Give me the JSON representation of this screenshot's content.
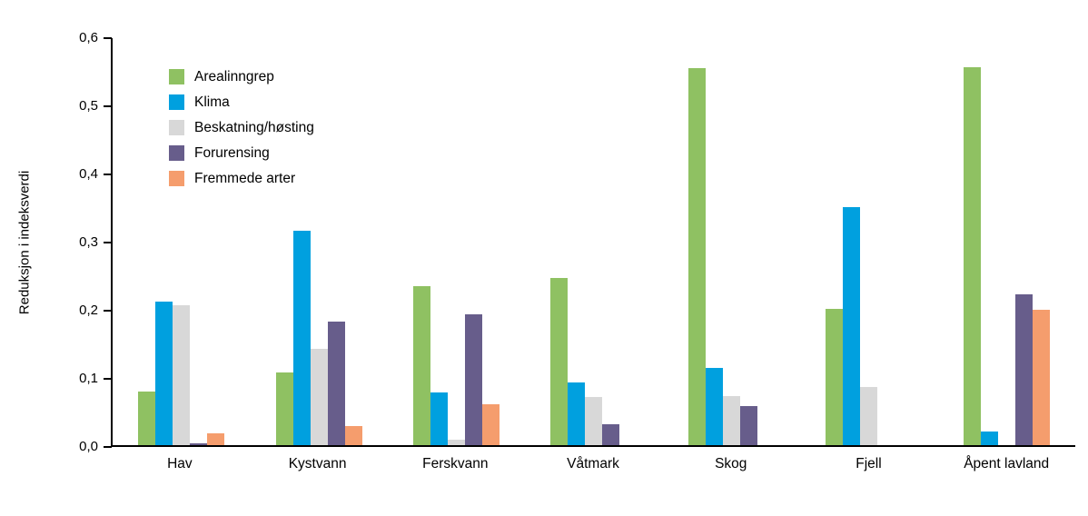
{
  "chart_data": {
    "type": "bar",
    "title": "",
    "xlabel": "",
    "ylabel": "Reduksjon i indeksverdi",
    "ylim": [
      0,
      0.6
    ],
    "grid": false,
    "legend_position": "top-left",
    "axis_color": "#000000",
    "yticks": [
      "0,0",
      "0,1",
      "0,2",
      "0,3",
      "0,4",
      "0,5",
      "0,6"
    ],
    "ytick_values": [
      0,
      0.1,
      0.2,
      0.3,
      0.4,
      0.5,
      0.6
    ],
    "categories": [
      "Hav",
      "Kystvann",
      "Ferskvann",
      "Våtmark",
      "Skog",
      "Fjell",
      "Åpent lavland"
    ],
    "series": [
      {
        "name": "Arealinngrep",
        "color": "#8FC162",
        "values": [
          0.079,
          0.107,
          0.234,
          0.245,
          0.553,
          0.2,
          0.555
        ]
      },
      {
        "name": "Klima",
        "color": "#00A0DF",
        "values": [
          0.211,
          0.315,
          0.077,
          0.092,
          0.113,
          0.35,
          0.02
        ]
      },
      {
        "name": "Beskatning/høsting",
        "color": "#D8D8D8",
        "values": [
          0.206,
          0.141,
          0.008,
          0.071,
          0.072,
          0.085,
          0
        ]
      },
      {
        "name": "Forurensing",
        "color": "#675D8B",
        "values": [
          0.003,
          0.181,
          0.192,
          0.031,
          0.057,
          0,
          0.222
        ]
      },
      {
        "name": "Fremmede arter",
        "color": "#F59D6D",
        "values": [
          0.017,
          0.028,
          0.06,
          0,
          0,
          0,
          0.199
        ]
      }
    ]
  }
}
